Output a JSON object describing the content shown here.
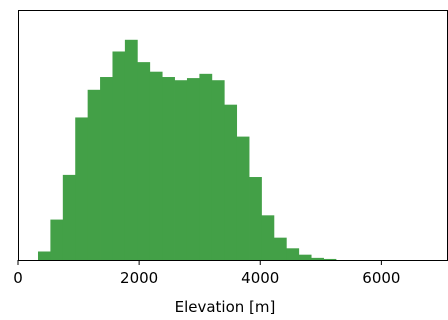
{
  "chart_data": {
    "type": "bar",
    "xlabel": "Elevation [m]",
    "ylabel": "",
    "xlim": [
      0,
      7100
    ],
    "ylim": [
      0,
      235
    ],
    "grid": false,
    "bar_color": "#43a047",
    "bin_width": 205,
    "bins": [
      {
        "x0": 330,
        "value": 8
      },
      {
        "x0": 535,
        "value": 38
      },
      {
        "x0": 740,
        "value": 80
      },
      {
        "x0": 945,
        "value": 134
      },
      {
        "x0": 1150,
        "value": 160
      },
      {
        "x0": 1355,
        "value": 172
      },
      {
        "x0": 1560,
        "value": 196
      },
      {
        "x0": 1765,
        "value": 207
      },
      {
        "x0": 1970,
        "value": 186
      },
      {
        "x0": 2175,
        "value": 177
      },
      {
        "x0": 2380,
        "value": 172
      },
      {
        "x0": 2585,
        "value": 169
      },
      {
        "x0": 2790,
        "value": 171
      },
      {
        "x0": 2995,
        "value": 175
      },
      {
        "x0": 3200,
        "value": 169
      },
      {
        "x0": 3405,
        "value": 146
      },
      {
        "x0": 3610,
        "value": 116
      },
      {
        "x0": 3815,
        "value": 78
      },
      {
        "x0": 4020,
        "value": 42
      },
      {
        "x0": 4225,
        "value": 21
      },
      {
        "x0": 4430,
        "value": 11
      },
      {
        "x0": 4635,
        "value": 5
      },
      {
        "x0": 4840,
        "value": 2
      },
      {
        "x0": 5045,
        "value": 1
      }
    ],
    "x_ticks": [
      {
        "value": 0,
        "label": "0"
      },
      {
        "value": 2000,
        "label": "2000"
      },
      {
        "value": 4000,
        "label": "4000"
      },
      {
        "value": 6000,
        "label": "6000"
      }
    ]
  }
}
